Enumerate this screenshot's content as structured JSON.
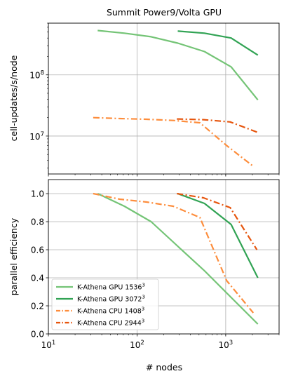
{
  "chart_data": [
    {
      "type": "line",
      "title": "Summit Power9/Volta GPU",
      "xlabel": "",
      "ylabel": "cell-updates/s/node",
      "xscale": "log",
      "yscale": "log",
      "xlim": [
        10,
        4000
      ],
      "ylim": [
        2400000,
        700000000
      ],
      "grid": true,
      "y_tick_labels": [
        {
          "value": 10000000,
          "base": "10",
          "exp": "7"
        },
        {
          "value": 100000000,
          "base": "10",
          "exp": "8"
        }
      ],
      "series": [
        {
          "name_base": "K-Athena GPU 1536",
          "name_exp": "3",
          "color": "#74c476",
          "linestyle": "solid",
          "x": [
            36,
            72,
            144,
            288,
            576,
            1152,
            2304
          ],
          "y": [
            530000000,
            480000000,
            420000000,
            330000000,
            240000000,
            135000000,
            39000000
          ]
        },
        {
          "name_base": "K-Athena GPU 3072",
          "name_exp": "3",
          "color": "#31a354",
          "linestyle": "solid",
          "x": [
            288,
            576,
            1152,
            2304
          ],
          "y": [
            520000000,
            480000000,
            400000000,
            210000000
          ]
        },
        {
          "name_base": "K-Athena CPU 1408",
          "name_exp": "3",
          "color": "#fd8d3c",
          "linestyle": "dashdot",
          "x": [
            32,
            64,
            128,
            256,
            512,
            1024,
            2048
          ],
          "y": [
            20000000,
            19300000,
            18800000,
            18000000,
            16500000,
            7000000,
            3200000
          ]
        },
        {
          "name_base": "K-Athena CPU 2944",
          "name_exp": "3",
          "color": "#e6550d",
          "linestyle": "dashdot",
          "x": [
            281,
            562,
            1124,
            2248
          ],
          "y": [
            19000000,
            18500000,
            17000000,
            11600000
          ]
        }
      ]
    },
    {
      "type": "line",
      "title": "",
      "xlabel": "# nodes",
      "ylabel": "parallel efficiency",
      "xscale": "log",
      "yscale": "linear",
      "xlim": [
        10,
        4000
      ],
      "ylim": [
        0.0,
        1.1
      ],
      "grid": true,
      "legend": "lower-left",
      "x_tick_labels": [
        {
          "value": 10,
          "base": "10",
          "exp": "1"
        },
        {
          "value": 100,
          "base": "10",
          "exp": "2"
        },
        {
          "value": 1000,
          "base": "10",
          "exp": "3"
        }
      ],
      "y_ticks": [
        "0.0",
        "0.2",
        "0.4",
        "0.6",
        "0.8",
        "1.0"
      ],
      "series": [
        {
          "name_base": "K-Athena GPU 1536",
          "name_exp": "3",
          "color": "#74c476",
          "linestyle": "solid",
          "x": [
            36,
            72,
            144,
            288,
            576,
            1152,
            2304
          ],
          "y": [
            1.0,
            0.91,
            0.8,
            0.625,
            0.45,
            0.26,
            0.07
          ]
        },
        {
          "name_base": "K-Athena GPU 3072",
          "name_exp": "3",
          "color": "#31a354",
          "linestyle": "solid",
          "x": [
            288,
            576,
            1152,
            2304
          ],
          "y": [
            1.0,
            0.93,
            0.78,
            0.4
          ]
        },
        {
          "name_base": "K-Athena CPU 1408",
          "name_exp": "3",
          "color": "#fd8d3c",
          "linestyle": "dashdot",
          "x": [
            32,
            64,
            128,
            256,
            512,
            1024,
            2048
          ],
          "y": [
            1.0,
            0.96,
            0.94,
            0.91,
            0.83,
            0.38,
            0.15
          ]
        },
        {
          "name_base": "K-Athena CPU 2944",
          "name_exp": "3",
          "color": "#e6550d",
          "linestyle": "dashdot",
          "x": [
            281,
            562,
            1124,
            2248
          ],
          "y": [
            1.0,
            0.97,
            0.9,
            0.6
          ]
        }
      ]
    }
  ]
}
